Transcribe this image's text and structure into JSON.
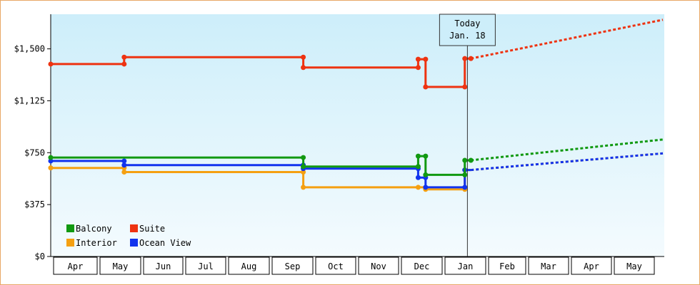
{
  "chart_data": {
    "type": "line",
    "title": "",
    "xlabel": "",
    "ylabel": "",
    "ylim": [
      0,
      1750
    ],
    "y_ticks": [
      {
        "value": 0,
        "label": "$0"
      },
      {
        "value": 375,
        "label": "$375"
      },
      {
        "value": 750,
        "label": "$750"
      },
      {
        "value": 1125,
        "label": "$1,125"
      },
      {
        "value": 1500,
        "label": "$1,500"
      }
    ],
    "x_axis_unit": "month_index",
    "x_range": [
      0,
      14.2
    ],
    "x_categories": [
      {
        "label": "Apr",
        "start": 0,
        "end": 1
      },
      {
        "label": "May",
        "start": 1,
        "end": 2
      },
      {
        "label": "Jun",
        "start": 2,
        "end": 3
      },
      {
        "label": "Jul",
        "start": 3,
        "end": 4
      },
      {
        "label": "Aug",
        "start": 4,
        "end": 5
      },
      {
        "label": "Sep",
        "start": 5,
        "end": 6
      },
      {
        "label": "Oct",
        "start": 6,
        "end": 7
      },
      {
        "label": "Nov",
        "start": 7,
        "end": 8
      },
      {
        "label": "Dec",
        "start": 8,
        "end": 9
      },
      {
        "label": "Jan",
        "start": 9,
        "end": 10
      },
      {
        "label": "Feb",
        "start": 10,
        "end": 11
      },
      {
        "label": "Mar",
        "start": 11,
        "end": 12
      },
      {
        "label": "Apr",
        "start": 12,
        "end": 13
      },
      {
        "label": "May",
        "start": 13,
        "end": 14
      }
    ],
    "today": {
      "line1": "Today",
      "line2": "Jan. 18",
      "x": 9.58
    },
    "grid": false,
    "legend_position": "bottom-left",
    "series": [
      {
        "name": "Balcony",
        "color": "#119911",
        "points": [
          [
            0,
            715
          ],
          [
            5.78,
            715
          ],
          [
            5.78,
            650
          ],
          [
            8.45,
            650
          ],
          [
            8.45,
            725
          ],
          [
            8.62,
            725
          ],
          [
            8.62,
            590
          ],
          [
            9.52,
            590
          ],
          [
            9.52,
            695
          ],
          [
            9.66,
            695
          ]
        ],
        "markers": [
          [
            0,
            715
          ],
          [
            5.78,
            715
          ],
          [
            5.78,
            650
          ],
          [
            8.45,
            650
          ],
          [
            8.45,
            725
          ],
          [
            8.62,
            725
          ],
          [
            8.62,
            590
          ],
          [
            9.52,
            590
          ],
          [
            9.52,
            695
          ],
          [
            9.66,
            695
          ]
        ],
        "forecast": [
          [
            9.66,
            695
          ],
          [
            14.2,
            845
          ]
        ]
      },
      {
        "name": "Suite",
        "color": "#ee3311",
        "points": [
          [
            0,
            1390
          ],
          [
            1.62,
            1390
          ],
          [
            1.62,
            1440
          ],
          [
            5.78,
            1440
          ],
          [
            5.78,
            1365
          ],
          [
            8.45,
            1365
          ],
          [
            8.45,
            1425
          ],
          [
            8.62,
            1425
          ],
          [
            8.62,
            1225
          ],
          [
            9.52,
            1225
          ],
          [
            9.52,
            1430
          ],
          [
            9.66,
            1430
          ]
        ],
        "markers": [
          [
            0,
            1390
          ],
          [
            1.62,
            1390
          ],
          [
            1.62,
            1440
          ],
          [
            5.78,
            1440
          ],
          [
            5.78,
            1365
          ],
          [
            8.45,
            1365
          ],
          [
            8.45,
            1425
          ],
          [
            8.62,
            1425
          ],
          [
            8.62,
            1225
          ],
          [
            9.52,
            1225
          ],
          [
            9.52,
            1430
          ],
          [
            9.66,
            1430
          ]
        ],
        "forecast": [
          [
            9.66,
            1430
          ],
          [
            14.2,
            1710
          ]
        ]
      },
      {
        "name": "Interior",
        "color": "#f5a011",
        "points": [
          [
            0,
            640
          ],
          [
            1.62,
            640
          ],
          [
            1.62,
            610
          ],
          [
            5.78,
            610
          ],
          [
            5.78,
            500
          ],
          [
            8.45,
            500
          ],
          [
            8.45,
            500
          ],
          [
            8.62,
            500
          ],
          [
            8.62,
            485
          ],
          [
            9.52,
            485
          ],
          [
            9.52,
            625
          ],
          [
            9.66,
            625
          ]
        ],
        "markers": [
          [
            0,
            640
          ],
          [
            1.62,
            640
          ],
          [
            1.62,
            610
          ],
          [
            5.78,
            610
          ],
          [
            5.78,
            500
          ],
          [
            8.45,
            500
          ],
          [
            8.62,
            485
          ],
          [
            9.52,
            485
          ],
          [
            9.52,
            625
          ]
        ],
        "forecast": [
          [
            9.66,
            625
          ],
          [
            14.2,
            745
          ]
        ]
      },
      {
        "name": "Ocean View",
        "color": "#1133ee",
        "points": [
          [
            0,
            690
          ],
          [
            1.62,
            690
          ],
          [
            1.62,
            660
          ],
          [
            5.78,
            660
          ],
          [
            5.78,
            635
          ],
          [
            8.45,
            635
          ],
          [
            8.45,
            570
          ],
          [
            8.62,
            570
          ],
          [
            8.62,
            500
          ],
          [
            9.52,
            500
          ],
          [
            9.52,
            625
          ],
          [
            9.66,
            625
          ]
        ],
        "markers": [
          [
            0,
            690
          ],
          [
            1.62,
            690
          ],
          [
            1.62,
            660
          ],
          [
            5.78,
            660
          ],
          [
            5.78,
            635
          ],
          [
            8.45,
            635
          ],
          [
            8.45,
            570
          ],
          [
            8.62,
            570
          ],
          [
            8.62,
            500
          ],
          [
            9.52,
            500
          ],
          [
            9.52,
            625
          ]
        ],
        "forecast": [
          [
            9.66,
            625
          ],
          [
            14.2,
            745
          ]
        ]
      }
    ]
  }
}
